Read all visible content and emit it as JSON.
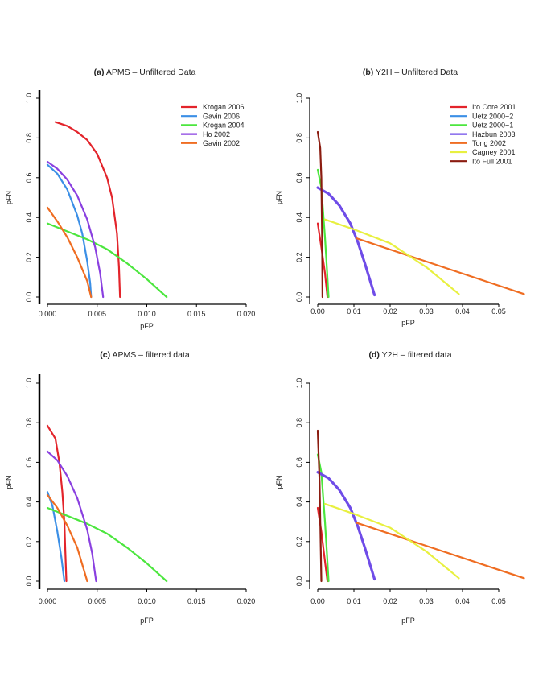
{
  "chart_data": [
    {
      "type": "line",
      "panel_label": "(a)",
      "title": "APMS – Unfiltered Data",
      "xlabel": "pFP",
      "ylabel": "pFN",
      "xlim": [
        0,
        0.02
      ],
      "ylim": [
        0,
        1.0
      ],
      "xticks": [
        "0.000",
        "0.005",
        "0.010",
        "0.015",
        "0.020"
      ],
      "xtick_values": [
        0,
        0.005,
        0.01,
        0.015,
        0.02
      ],
      "yticks": [
        "0.0",
        "0.2",
        "0.4",
        "0.6",
        "0.8",
        "1.0"
      ],
      "ytick_values": [
        0,
        0.2,
        0.4,
        0.6,
        0.8,
        1.0
      ],
      "legend": true,
      "legend_position": "top-right",
      "series": [
        {
          "name": "Krogan 2006",
          "color": "#e3242b",
          "x": [
            0.0008,
            0.002,
            0.003,
            0.004,
            0.005,
            0.006,
            0.0065,
            0.007,
            0.0072,
            0.0073
          ],
          "y": [
            0.88,
            0.86,
            0.83,
            0.79,
            0.72,
            0.6,
            0.5,
            0.32,
            0.15,
            0
          ]
        },
        {
          "name": "Gavin 2006",
          "color": "#3b8fe6",
          "x": [
            0,
            0.001,
            0.002,
            0.003,
            0.0035,
            0.004,
            0.0043,
            0.0044
          ],
          "y": [
            0.665,
            0.62,
            0.54,
            0.41,
            0.32,
            0.18,
            0.07,
            0
          ]
        },
        {
          "name": "Krogan 2004",
          "color": "#4ce63e",
          "x": [
            0,
            0.002,
            0.004,
            0.006,
            0.008,
            0.01,
            0.012
          ],
          "y": [
            0.37,
            0.33,
            0.29,
            0.24,
            0.17,
            0.09,
            0
          ]
        },
        {
          "name": "Ho 2002",
          "color": "#8a40e0",
          "x": [
            0,
            0.001,
            0.002,
            0.003,
            0.004,
            0.0048,
            0.0053,
            0.0056
          ],
          "y": [
            0.68,
            0.645,
            0.59,
            0.51,
            0.39,
            0.25,
            0.12,
            0
          ]
        },
        {
          "name": "Gavin 2002",
          "color": "#ef6d22",
          "x": [
            0,
            0.001,
            0.002,
            0.003,
            0.004,
            0.0044
          ],
          "y": [
            0.45,
            0.38,
            0.3,
            0.2,
            0.08,
            0
          ]
        }
      ]
    },
    {
      "type": "line",
      "panel_label": "(b)",
      "title": "Y2H – Unfiltered Data",
      "xlabel": "pFP",
      "ylabel": "pFN",
      "xlim": [
        0,
        0.05
      ],
      "ylim": [
        0,
        1.0
      ],
      "xticks": [
        "0.00",
        "0.01",
        "0.02",
        "0.03",
        "0.04",
        "0.05"
      ],
      "xtick_values": [
        0,
        0.01,
        0.02,
        0.03,
        0.04,
        0.05
      ],
      "yticks": [
        "0.0",
        "0.2",
        "0.4",
        "0.6",
        "0.8",
        "1.0"
      ],
      "ytick_values": [
        0,
        0.2,
        0.4,
        0.6,
        0.8,
        1.0
      ],
      "legend": true,
      "legend_position": "top-right",
      "series": [
        {
          "name": "Ito Core 2001",
          "color": "#e3242b",
          "x": [
            0,
            0.001,
            0.002,
            0.0027
          ],
          "y": [
            0.37,
            0.25,
            0.12,
            0
          ]
        },
        {
          "name": "Uetz 2000−2",
          "color": "#3b8fe6",
          "x": [
            0,
            0.003,
            0.006,
            0.009,
            0.011,
            0.013,
            0.0157
          ],
          "y": [
            0.55,
            0.52,
            0.46,
            0.37,
            0.28,
            0.17,
            0.01
          ]
        },
        {
          "name": "Uetz 2000−1",
          "color": "#4ce63e",
          "x": [
            0,
            0.001,
            0.002,
            0.0025,
            0.003
          ],
          "y": [
            0.64,
            0.55,
            0.3,
            0.15,
            0
          ]
        },
        {
          "name": "Hazbun 2003",
          "color": "#6f4ce8",
          "x": [
            0,
            0.003,
            0.006,
            0.009,
            0.011,
            0.013,
            0.0157
          ],
          "y": [
            0.55,
            0.52,
            0.46,
            0.37,
            0.28,
            0.17,
            0.01
          ]
        },
        {
          "name": "Tong 2002",
          "color": "#ef6d22",
          "x": [
            0.0107,
            0.057
          ],
          "y": [
            0.295,
            0.015
          ]
        },
        {
          "name": "Cagney 2001",
          "color": "#e8f040",
          "x": [
            0.002,
            0.01,
            0.02,
            0.03,
            0.039
          ],
          "y": [
            0.39,
            0.34,
            0.27,
            0.15,
            0.015
          ]
        },
        {
          "name": "Ito Full 2001",
          "color": "#8b1c10",
          "x": [
            0,
            0.0007,
            0.001,
            0.0012,
            0.0013
          ],
          "y": [
            0.83,
            0.75,
            0.6,
            0.3,
            0
          ]
        }
      ]
    },
    {
      "type": "line",
      "panel_label": "(c)",
      "title": "APMS – filtered data",
      "xlabel": "pFP",
      "ylabel": "pFN",
      "xlim": [
        0,
        0.02
      ],
      "ylim": [
        0,
        1.0
      ],
      "xticks": [
        "0.000",
        "0.005",
        "0.010",
        "0.015",
        "0.020"
      ],
      "xtick_values": [
        0,
        0.005,
        0.01,
        0.015,
        0.02
      ],
      "yticks": [
        "0.0",
        "0.2",
        "0.4",
        "0.6",
        "0.8",
        "1.0"
      ],
      "ytick_values": [
        0,
        0.2,
        0.4,
        0.6,
        0.8,
        1.0
      ],
      "legend": false,
      "series": [
        {
          "name": "Krogan 2006",
          "color": "#e3242b",
          "x": [
            0,
            0.0008,
            0.0012,
            0.0015,
            0.0017,
            0.0018,
            0.0019
          ],
          "y": [
            0.785,
            0.72,
            0.6,
            0.45,
            0.3,
            0.15,
            0
          ]
        },
        {
          "name": "Gavin 2006",
          "color": "#3b8fe6",
          "x": [
            0,
            0.0005,
            0.001,
            0.0014,
            0.0017
          ],
          "y": [
            0.45,
            0.38,
            0.25,
            0.12,
            0
          ]
        },
        {
          "name": "Krogan 2004",
          "color": "#4ce63e",
          "x": [
            0,
            0.002,
            0.004,
            0.006,
            0.008,
            0.01,
            0.012
          ],
          "y": [
            0.37,
            0.33,
            0.29,
            0.24,
            0.17,
            0.09,
            0
          ]
        },
        {
          "name": "Ho 2002",
          "color": "#8a40e0",
          "x": [
            0,
            0.001,
            0.002,
            0.003,
            0.004,
            0.0045,
            0.0049
          ],
          "y": [
            0.655,
            0.61,
            0.53,
            0.42,
            0.26,
            0.14,
            0
          ]
        },
        {
          "name": "Gavin 2002",
          "color": "#ef6d22",
          "x": [
            0,
            0.001,
            0.002,
            0.003,
            0.004
          ],
          "y": [
            0.435,
            0.37,
            0.28,
            0.17,
            0
          ]
        }
      ]
    },
    {
      "type": "line",
      "panel_label": "(d)",
      "title": "Y2H – filtered data",
      "xlabel": "pFP",
      "ylabel": "pFN",
      "xlim": [
        0,
        0.05
      ],
      "ylim": [
        0,
        1.0
      ],
      "xticks": [
        "0.00",
        "0.01",
        "0.02",
        "0.03",
        "0.04",
        "0.05"
      ],
      "xtick_values": [
        0,
        0.01,
        0.02,
        0.03,
        0.04,
        0.05
      ],
      "yticks": [
        "0.0",
        "0.2",
        "0.4",
        "0.6",
        "0.8",
        "1.0"
      ],
      "ytick_values": [
        0,
        0.2,
        0.4,
        0.6,
        0.8,
        1.0
      ],
      "legend": false,
      "series": [
        {
          "name": "Ito Core 2001",
          "color": "#e3242b",
          "x": [
            0,
            0.001,
            0.002,
            0.0027
          ],
          "y": [
            0.37,
            0.25,
            0.1,
            0
          ]
        },
        {
          "name": "Uetz 2000−2",
          "color": "#3b8fe6",
          "x": [
            0,
            0.003,
            0.006,
            0.009,
            0.011,
            0.013,
            0.0157
          ],
          "y": [
            0.55,
            0.52,
            0.46,
            0.37,
            0.28,
            0.17,
            0.01
          ]
        },
        {
          "name": "Uetz 2000−1",
          "color": "#4ce63e",
          "x": [
            0,
            0.001,
            0.002,
            0.0025,
            0.003
          ],
          "y": [
            0.64,
            0.55,
            0.3,
            0.15,
            0
          ]
        },
        {
          "name": "Hazbun 2003",
          "color": "#6f4ce8",
          "x": [
            0,
            0.003,
            0.006,
            0.009,
            0.011,
            0.013,
            0.0157
          ],
          "y": [
            0.55,
            0.52,
            0.46,
            0.37,
            0.28,
            0.17,
            0.01
          ]
        },
        {
          "name": "Tong 2002",
          "color": "#ef6d22",
          "x": [
            0.0107,
            0.057
          ],
          "y": [
            0.295,
            0.015
          ]
        },
        {
          "name": "Cagney 2001",
          "color": "#e8f040",
          "x": [
            0.002,
            0.01,
            0.02,
            0.03,
            0.039
          ],
          "y": [
            0.39,
            0.34,
            0.27,
            0.15,
            0.015
          ]
        },
        {
          "name": "Ito Full 2001",
          "color": "#8b1c10",
          "x": [
            0,
            0.0005,
            0.0008,
            0.001
          ],
          "y": [
            0.76,
            0.5,
            0.2,
            0
          ]
        }
      ]
    }
  ]
}
